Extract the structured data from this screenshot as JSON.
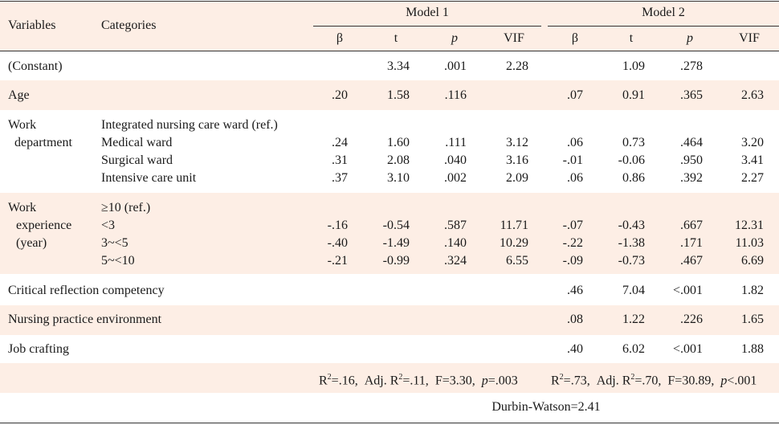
{
  "colors": {
    "band": "#fdeee5",
    "rule": "#333333",
    "text": "#1a1a1a"
  },
  "header": {
    "variables": "Variables",
    "categories": "Categories",
    "model1": "Model 1",
    "model2": "Model 2",
    "sub": {
      "beta": "β",
      "t": "t",
      "p": "p",
      "vif": "VIF"
    }
  },
  "rows": {
    "constant": {
      "label": "(Constant)",
      "m1": {
        "beta": "",
        "t": "3.34",
        "p": ".001",
        "vif": "2.28"
      },
      "m2": {
        "beta": "",
        "t": "1.09",
        "p": ".278",
        "vif": ""
      }
    },
    "age": {
      "label": "Age",
      "m1": {
        "beta": ".20",
        "t": "1.58",
        "p": ".116",
        "vif": ""
      },
      "m2": {
        "beta": ".07",
        "t": "0.91",
        "p": ".365",
        "vif": "2.63"
      }
    },
    "dept": {
      "label1": "Work",
      "label2": "department",
      "ref": "Integrated nursing care ward (ref.)",
      "items": [
        {
          "cat": "Medical ward",
          "m1": [
            ".24",
            "1.60",
            ".111",
            "3.12"
          ],
          "m2": [
            ".06",
            "0.73",
            ".464",
            "3.20"
          ]
        },
        {
          "cat": "Surgical ward",
          "m1": [
            ".31",
            "2.08",
            ".040",
            "3.16"
          ],
          "m2": [
            "-.01",
            "-0.06",
            ".950",
            "3.41"
          ]
        },
        {
          "cat": "Intensive care unit",
          "m1": [
            ".37",
            "3.10",
            ".002",
            "2.09"
          ],
          "m2": [
            ".06",
            "0.86",
            ".392",
            "2.27"
          ]
        }
      ]
    },
    "exp": {
      "label1": "Work",
      "label2": "experience",
      "label3": "(year)",
      "ref": "≥10 (ref.)",
      "items": [
        {
          "cat": "<3",
          "m1": [
            "-.16",
            "-0.54",
            ".587",
            "11.71"
          ],
          "m2": [
            "-.07",
            "-0.43",
            ".667",
            "12.31"
          ]
        },
        {
          "cat": "3~<5",
          "m1": [
            "-.40",
            "-1.49",
            ".140",
            "10.29"
          ],
          "m2": [
            "-.22",
            "-1.38",
            ".171",
            "11.03"
          ]
        },
        {
          "cat": "5~<10",
          "m1": [
            "-.21",
            "-0.99",
            ".324",
            "6.55"
          ],
          "m2": [
            "-.09",
            "-0.73",
            ".467",
            "6.69"
          ]
        }
      ]
    },
    "critical": {
      "label": "Critical reflection competency",
      "m2": [
        ".46",
        "7.04",
        "<.001",
        "1.82"
      ]
    },
    "env": {
      "label": "Nursing practice environment",
      "m2": [
        ".08",
        "1.22",
        ".226",
        "1.65"
      ]
    },
    "job": {
      "label": "Job crafting",
      "m2": [
        ".40",
        "6.02",
        "<.001",
        "1.88"
      ]
    }
  },
  "stats": {
    "m1": {
      "r2": "=.16,",
      "adj": "=.11,",
      "f": "F=3.30,",
      "p": "=.003"
    },
    "m2": {
      "r2": "=.73,",
      "adj": "=.70,",
      "f": "F=30.89,",
      "p": "<.001"
    },
    "r_letter": "R",
    "adj_prefix": "Adj. R",
    "sup": "2",
    "p_letter": "p",
    "durbin": "Durbin-Watson=2.41"
  }
}
